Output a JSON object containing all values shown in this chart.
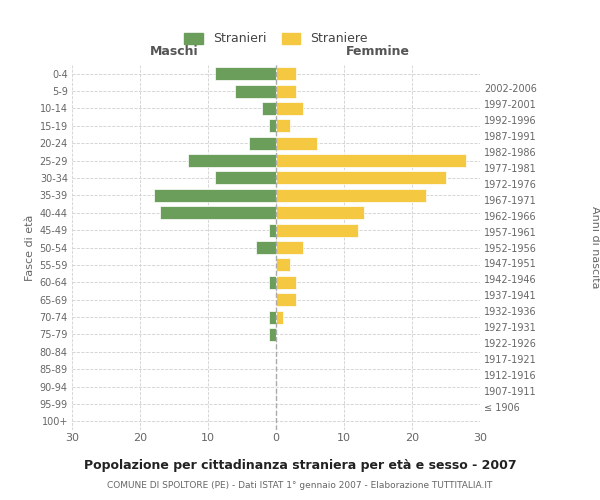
{
  "age_groups": [
    "100+",
    "95-99",
    "90-94",
    "85-89",
    "80-84",
    "75-79",
    "70-74",
    "65-69",
    "60-64",
    "55-59",
    "50-54",
    "45-49",
    "40-44",
    "35-39",
    "30-34",
    "25-29",
    "20-24",
    "15-19",
    "10-14",
    "5-9",
    "0-4"
  ],
  "birth_years": [
    "≤ 1906",
    "1907-1911",
    "1912-1916",
    "1917-1921",
    "1922-1926",
    "1927-1931",
    "1932-1936",
    "1937-1941",
    "1942-1946",
    "1947-1951",
    "1952-1956",
    "1957-1961",
    "1962-1966",
    "1967-1971",
    "1972-1976",
    "1977-1981",
    "1982-1986",
    "1987-1991",
    "1992-1996",
    "1997-2001",
    "2002-2006"
  ],
  "maschi": [
    0,
    0,
    0,
    0,
    0,
    1,
    1,
    0,
    1,
    0,
    3,
    1,
    17,
    18,
    9,
    13,
    4,
    1,
    2,
    6,
    9
  ],
  "femmine": [
    0,
    0,
    0,
    0,
    0,
    0,
    1,
    3,
    3,
    2,
    4,
    12,
    13,
    22,
    25,
    28,
    6,
    2,
    4,
    3,
    3
  ],
  "maschi_color": "#6a9e5a",
  "femmine_color": "#f5c842",
  "title": "Popolazione per cittadinanza straniera per età e sesso - 2007",
  "subtitle": "COMUNE DI SPOLTORE (PE) - Dati ISTAT 1° gennaio 2007 - Elaborazione TUTTITALIA.IT",
  "xlabel_left": "Maschi",
  "xlabel_right": "Femmine",
  "ylabel_left": "Fasce di età",
  "ylabel_right": "Anni di nascita",
  "legend_maschi": "Stranieri",
  "legend_femmine": "Straniere",
  "xlim": 30,
  "background_color": "#ffffff",
  "grid_color": "#d0d0d0"
}
